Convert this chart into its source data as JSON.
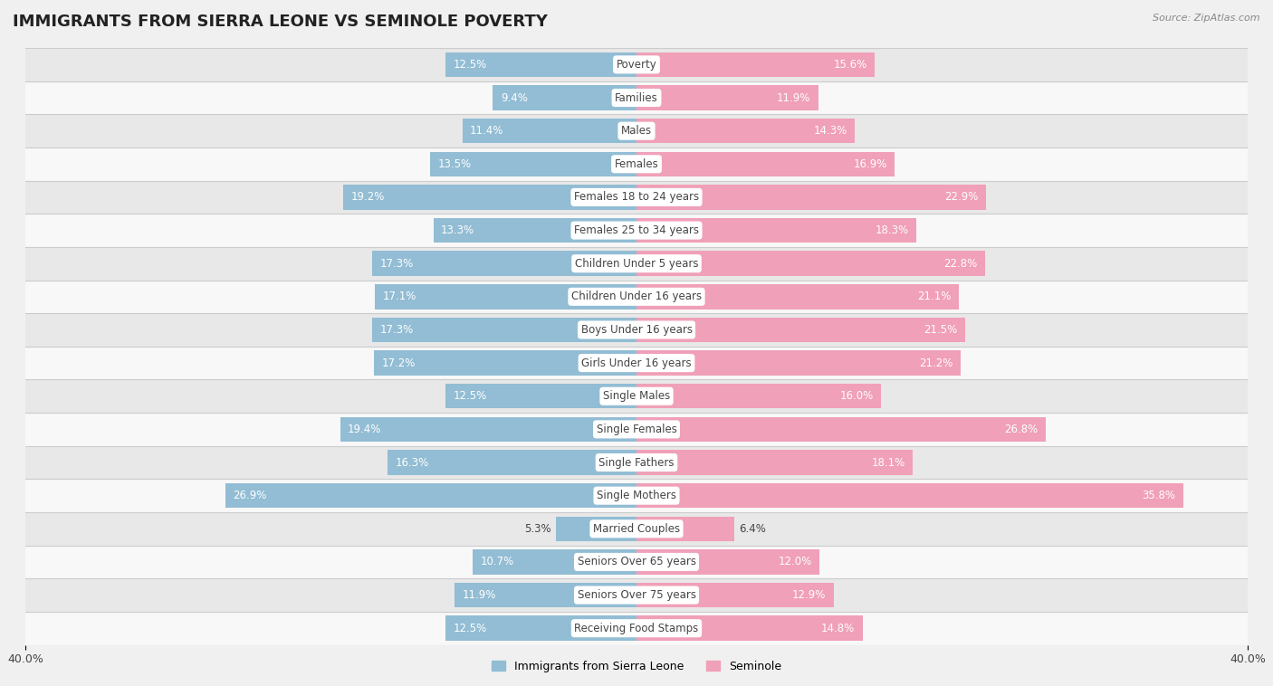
{
  "title": "IMMIGRANTS FROM SIERRA LEONE VS SEMINOLE POVERTY",
  "source": "Source: ZipAtlas.com",
  "categories": [
    "Poverty",
    "Families",
    "Males",
    "Females",
    "Females 18 to 24 years",
    "Females 25 to 34 years",
    "Children Under 5 years",
    "Children Under 16 years",
    "Boys Under 16 years",
    "Girls Under 16 years",
    "Single Males",
    "Single Females",
    "Single Fathers",
    "Single Mothers",
    "Married Couples",
    "Seniors Over 65 years",
    "Seniors Over 75 years",
    "Receiving Food Stamps"
  ],
  "sierra_leone": [
    12.5,
    9.4,
    11.4,
    13.5,
    19.2,
    13.3,
    17.3,
    17.1,
    17.3,
    17.2,
    12.5,
    19.4,
    16.3,
    26.9,
    5.3,
    10.7,
    11.9,
    12.5
  ],
  "seminole": [
    15.6,
    11.9,
    14.3,
    16.9,
    22.9,
    18.3,
    22.8,
    21.1,
    21.5,
    21.2,
    16.0,
    26.8,
    18.1,
    35.8,
    6.4,
    12.0,
    12.9,
    14.8
  ],
  "sierra_leone_color": "#92bdd4",
  "seminole_color": "#f0a0b8",
  "sierra_leone_highlight_color": "#6a9fc4",
  "seminole_highlight_color": "#e06080",
  "background_color": "#f0f0f0",
  "row_even_color": "#e8e8e8",
  "row_odd_color": "#f8f8f8",
  "axis_limit": 40.0,
  "bar_height": 0.75,
  "title_fontsize": 13,
  "label_fontsize": 8.5,
  "value_fontsize": 8.5,
  "legend_fontsize": 9
}
